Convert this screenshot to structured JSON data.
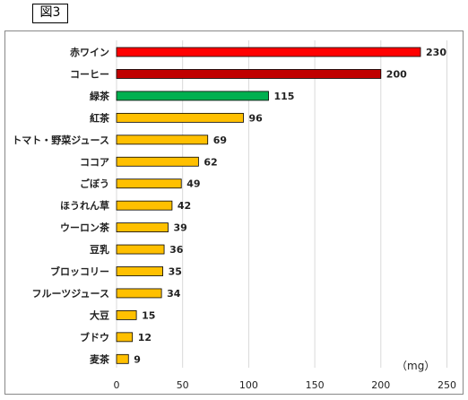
{
  "figure_label": "図3",
  "chart_data": {
    "type": "bar",
    "orientation": "horizontal",
    "categories": [
      "赤ワイン",
      "コーヒー",
      "緑茶",
      "紅茶",
      "トマト・野菜ジュース",
      "ココア",
      "ごぼう",
      "ほうれん草",
      "ウーロン茶",
      "豆乳",
      "ブロッコリー",
      "フルーツジュース",
      "大豆",
      "ブドウ",
      "麦茶"
    ],
    "values": [
      230,
      200,
      115,
      96,
      69,
      62,
      49,
      42,
      39,
      36,
      35,
      34,
      15,
      12,
      9
    ],
    "value_labels": [
      "230",
      "200",
      "115",
      "96",
      "69",
      "62",
      "49",
      "42",
      "39",
      "36",
      "35",
      "34",
      "15",
      "12",
      "9"
    ],
    "bar_colors": [
      "#ff0000",
      "#c00000",
      "#00b050",
      "#ffc000",
      "#ffc000",
      "#ffc000",
      "#ffc000",
      "#ffc000",
      "#ffc000",
      "#ffc000",
      "#ffc000",
      "#ffc000",
      "#ffc000",
      "#ffc000",
      "#ffc000"
    ],
    "xlim": [
      0,
      250
    ],
    "ticks": [
      0,
      50,
      100,
      150,
      200,
      250
    ],
    "tick_labels": [
      "0",
      "50",
      "100",
      "150",
      "200",
      "250"
    ],
    "unit": "（mg）",
    "grid": "vertical",
    "gridline_color": "#d9d9d9",
    "bar_outline_color": "#000000"
  }
}
